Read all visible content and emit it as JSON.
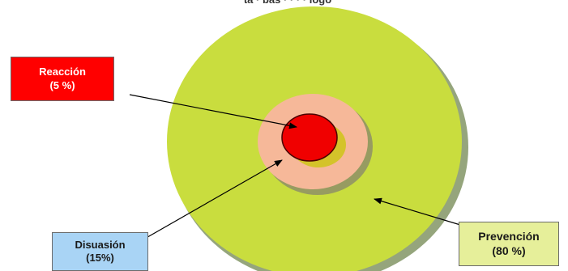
{
  "layers": [
    {
      "name": "Reacción",
      "value": "(5 %)",
      "fill": "#ff0000"
    },
    {
      "name": "Disuasión",
      "value": "(15%)",
      "fill": "#a9d4f5"
    },
    {
      "name": "Prevención",
      "value": "(80 %)",
      "fill": "#e6ef9a"
    }
  ],
  "colors": {
    "outer_disc": "#c9dd3e",
    "middle_disc": "#f6b899",
    "inner_disc": "#f00000",
    "inner_shadow": "#d4c32a",
    "arrow": "#000000"
  }
}
